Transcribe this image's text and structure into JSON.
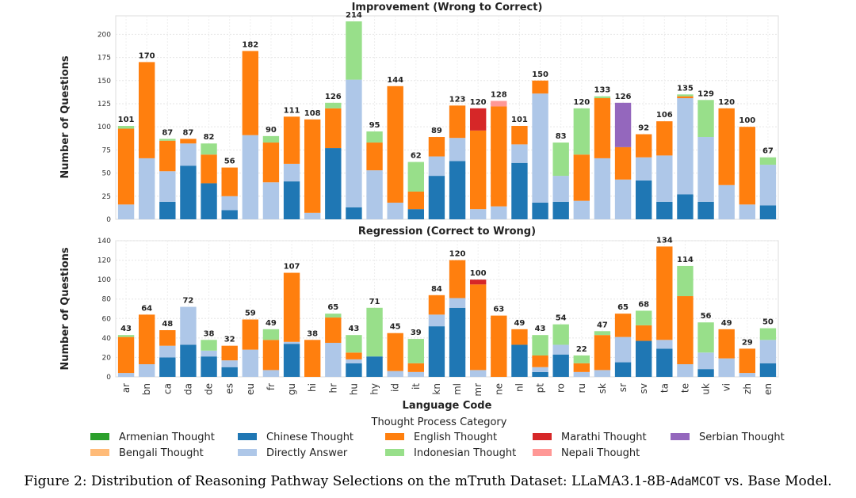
{
  "chart_data": [
    {
      "type": "bar",
      "stacked": true,
      "title": "Improvement (Wrong to Correct)",
      "xlabel": "",
      "ylabel": "Number of Questions",
      "ylim": [
        0,
        220
      ],
      "yticks": [
        0,
        25,
        50,
        75,
        100,
        125,
        150,
        175,
        200
      ],
      "grid": true,
      "categories": [
        "ar",
        "bn",
        "ca",
        "da",
        "de",
        "es",
        "eu",
        "fr",
        "gu",
        "hi",
        "hr",
        "hu",
        "hy",
        "id",
        "it",
        "kn",
        "ml",
        "mr",
        "ne",
        "nl",
        "pt",
        "ro",
        "ru",
        "sk",
        "sr",
        "sv",
        "ta",
        "te",
        "uk",
        "vi",
        "zh",
        "en"
      ],
      "totals": [
        101,
        170,
        87,
        87,
        82,
        56,
        182,
        90,
        111,
        108,
        126,
        214,
        95,
        144,
        62,
        89,
        123,
        120,
        128,
        101,
        150,
        83,
        120,
        133,
        126,
        92,
        106,
        135,
        129,
        120,
        100,
        67
      ],
      "series": [
        {
          "name": "Chinese Thought",
          "color": "#1f77b4",
          "values": [
            0,
            0,
            19,
            58,
            39,
            10,
            0,
            0,
            41,
            0,
            77,
            13,
            0,
            0,
            11,
            47,
            63,
            0,
            0,
            61,
            18,
            19,
            0,
            0,
            0,
            42,
            19,
            27,
            19,
            0,
            0,
            15
          ]
        },
        {
          "name": "Directly Answer",
          "color": "#aec7e8",
          "values": [
            16,
            66,
            33,
            24,
            0,
            15,
            91,
            40,
            19,
            7,
            0,
            138,
            53,
            18,
            0,
            21,
            25,
            11,
            14,
            20,
            118,
            28,
            20,
            66,
            43,
            25,
            50,
            104,
            70,
            37,
            16,
            44
          ]
        },
        {
          "name": "English Thought",
          "color": "#ff7f0e",
          "values": [
            82,
            104,
            33,
            5,
            31,
            31,
            91,
            43,
            51,
            101,
            43,
            0,
            30,
            126,
            19,
            21,
            35,
            85,
            108,
            20,
            14,
            0,
            50,
            65,
            35,
            25,
            37,
            2,
            0,
            83,
            84,
            0
          ]
        },
        {
          "name": "Indonesian Thought",
          "color": "#98df8a",
          "values": [
            3,
            0,
            2,
            0,
            12,
            0,
            0,
            7,
            0,
            0,
            6,
            63,
            12,
            0,
            32,
            0,
            0,
            0,
            0,
            0,
            0,
            36,
            50,
            2,
            0,
            0,
            0,
            2,
            40,
            0,
            0,
            8
          ]
        },
        {
          "name": "Marathi Thought",
          "color": "#d62728",
          "values": [
            0,
            0,
            0,
            0,
            0,
            0,
            0,
            0,
            0,
            0,
            0,
            0,
            0,
            0,
            0,
            0,
            0,
            24,
            0,
            0,
            0,
            0,
            0,
            0,
            0,
            0,
            0,
            0,
            0,
            0,
            0,
            0
          ]
        },
        {
          "name": "Nepali Thought",
          "color": "#ff9896",
          "values": [
            0,
            0,
            0,
            0,
            0,
            0,
            0,
            0,
            0,
            0,
            0,
            0,
            0,
            0,
            0,
            0,
            0,
            0,
            6,
            0,
            0,
            0,
            0,
            0,
            0,
            0,
            0,
            0,
            0,
            0,
            0,
            0
          ]
        },
        {
          "name": "Serbian Thought",
          "color": "#9467bd",
          "values": [
            0,
            0,
            0,
            0,
            0,
            0,
            0,
            0,
            0,
            0,
            0,
            0,
            0,
            0,
            0,
            0,
            0,
            0,
            0,
            0,
            0,
            0,
            0,
            0,
            48,
            0,
            0,
            0,
            0,
            0,
            0,
            0
          ]
        }
      ]
    },
    {
      "type": "bar",
      "stacked": true,
      "title": "Regression (Correct to Wrong)",
      "xlabel": "Language Code",
      "ylabel": "Number of Questions",
      "ylim": [
        0,
        140
      ],
      "yticks": [
        0,
        20,
        40,
        60,
        80,
        100,
        120,
        140
      ],
      "grid": true,
      "categories": [
        "ar",
        "bn",
        "ca",
        "da",
        "de",
        "es",
        "eu",
        "fr",
        "gu",
        "hi",
        "hr",
        "hu",
        "hy",
        "id",
        "it",
        "kn",
        "ml",
        "mr",
        "ne",
        "nl",
        "pt",
        "ro",
        "ru",
        "sk",
        "sr",
        "sv",
        "ta",
        "te",
        "uk",
        "vi",
        "zh",
        "en"
      ],
      "totals": [
        43,
        64,
        48,
        72,
        38,
        32,
        59,
        49,
        107,
        38,
        65,
        43,
        71,
        45,
        39,
        84,
        120,
        100,
        63,
        49,
        43,
        54,
        22,
        47,
        65,
        68,
        134,
        114,
        56,
        49,
        29,
        50
      ],
      "series": [
        {
          "name": "Chinese Thought",
          "color": "#1f77b4",
          "values": [
            0,
            0,
            20,
            33,
            21,
            10,
            0,
            0,
            34,
            0,
            0,
            14,
            21,
            0,
            0,
            52,
            71,
            0,
            0,
            33,
            5,
            23,
            0,
            0,
            15,
            37,
            29,
            0,
            8,
            0,
            0,
            14
          ]
        },
        {
          "name": "Directly Answer",
          "color": "#aec7e8",
          "values": [
            4,
            13,
            12,
            39,
            6,
            7,
            28,
            7,
            2,
            0,
            35,
            4,
            0,
            6,
            5,
            12,
            10,
            7,
            0,
            0,
            5,
            10,
            5,
            7,
            26,
            0,
            9,
            13,
            17,
            19,
            4,
            24
          ]
        },
        {
          "name": "English Thought",
          "color": "#ff7f0e",
          "values": [
            37,
            51,
            16,
            0,
            0,
            15,
            31,
            31,
            71,
            38,
            26,
            7,
            0,
            39,
            9,
            20,
            39,
            88,
            63,
            16,
            12,
            0,
            9,
            36,
            24,
            16,
            96,
            70,
            0,
            30,
            25,
            0
          ]
        },
        {
          "name": "Indonesian Thought",
          "color": "#98df8a",
          "values": [
            2,
            0,
            0,
            0,
            11,
            0,
            0,
            11,
            0,
            0,
            4,
            18,
            50,
            0,
            25,
            0,
            0,
            0,
            0,
            0,
            21,
            21,
            8,
            4,
            0,
            15,
            0,
            31,
            31,
            0,
            0,
            12
          ]
        },
        {
          "name": "Marathi Thought",
          "color": "#d62728",
          "values": [
            0,
            0,
            0,
            0,
            0,
            0,
            0,
            0,
            0,
            0,
            0,
            0,
            0,
            0,
            0,
            0,
            0,
            5,
            0,
            0,
            0,
            0,
            0,
            0,
            0,
            0,
            0,
            0,
            0,
            0,
            0,
            0
          ]
        },
        {
          "name": "Bengali Thought",
          "color": "#ffbb78",
          "values": [
            0,
            0,
            0,
            0,
            0,
            0,
            0,
            0,
            0,
            0,
            0,
            0,
            0,
            0,
            0,
            0,
            0,
            0,
            0,
            0,
            0,
            0,
            0,
            0,
            0,
            0,
            0,
            0,
            0,
            0,
            0,
            0
          ]
        }
      ]
    }
  ],
  "legend": {
    "title": "Thought Process Category",
    "entries": [
      {
        "name": "Armenian Thought",
        "color": "#2ca02c"
      },
      {
        "name": "Bengali Thought",
        "color": "#ffbb78"
      },
      {
        "name": "Chinese Thought",
        "color": "#1f77b4"
      },
      {
        "name": "Directly Answer",
        "color": "#aec7e8"
      },
      {
        "name": "English Thought",
        "color": "#ff7f0e"
      },
      {
        "name": "Indonesian Thought",
        "color": "#98df8a"
      },
      {
        "name": "Marathi Thought",
        "color": "#d62728"
      },
      {
        "name": "Nepali Thought",
        "color": "#ff9896"
      },
      {
        "name": "Serbian Thought",
        "color": "#9467bd"
      }
    ]
  },
  "caption": {
    "prefix": "Figure 2: Distribution of Reasoning Pathway Selections on the mTruth Dataset: LLaMA3.1-8B-",
    "model": "AdaMCOT",
    "suffix": " vs. Base Model."
  }
}
